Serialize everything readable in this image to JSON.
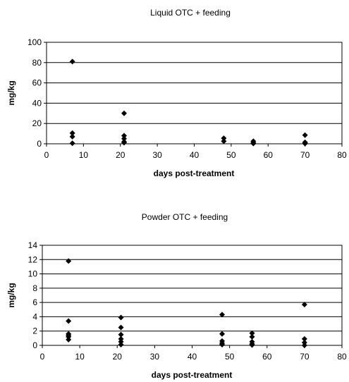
{
  "chart_data": [
    {
      "type": "scatter",
      "title": "Liquid OTC + feeding",
      "xlabel": "days post-treatment",
      "ylabel": "mg/kg",
      "xlim": [
        0,
        80
      ],
      "ylim": [
        0,
        100
      ],
      "xticks": [
        0,
        10,
        20,
        30,
        40,
        50,
        60,
        70,
        80
      ],
      "yticks": [
        0,
        20,
        40,
        60,
        80,
        100
      ],
      "grid": "horizontal",
      "marker": "diamond",
      "marker_color": "#000000",
      "points": [
        {
          "x": 7,
          "y": 81
        },
        {
          "x": 7,
          "y": 10.5
        },
        {
          "x": 7,
          "y": 7
        },
        {
          "x": 7,
          "y": 0.5
        },
        {
          "x": 21,
          "y": 30
        },
        {
          "x": 21,
          "y": 8
        },
        {
          "x": 21,
          "y": 5
        },
        {
          "x": 21,
          "y": 2
        },
        {
          "x": 21,
          "y": 1
        },
        {
          "x": 48,
          "y": 5.5
        },
        {
          "x": 48,
          "y": 2.5
        },
        {
          "x": 56,
          "y": 2.5
        },
        {
          "x": 56,
          "y": 1
        },
        {
          "x": 56,
          "y": 0.3
        },
        {
          "x": 70,
          "y": 8.5
        },
        {
          "x": 70,
          "y": 1.5
        },
        {
          "x": 70,
          "y": 0.8
        },
        {
          "x": 70,
          "y": 0.2
        }
      ]
    },
    {
      "type": "scatter",
      "title": "Powder OTC + feeding",
      "xlabel": "days post-treatment",
      "ylabel": "mg/kg",
      "xlim": [
        0,
        80
      ],
      "ylim": [
        0,
        14
      ],
      "xticks": [
        0,
        10,
        20,
        30,
        40,
        50,
        60,
        70,
        80
      ],
      "yticks": [
        0,
        2,
        4,
        6,
        8,
        10,
        12,
        14
      ],
      "grid": "horizontal",
      "marker": "diamond",
      "marker_color": "#000000",
      "points": [
        {
          "x": 7,
          "y": 11.8
        },
        {
          "x": 7,
          "y": 3.4
        },
        {
          "x": 7,
          "y": 1.6
        },
        {
          "x": 7,
          "y": 1.4
        },
        {
          "x": 7,
          "y": 1.2
        },
        {
          "x": 7,
          "y": 0.8
        },
        {
          "x": 21,
          "y": 3.9
        },
        {
          "x": 21,
          "y": 2.5
        },
        {
          "x": 21,
          "y": 1.5
        },
        {
          "x": 21,
          "y": 0.9
        },
        {
          "x": 21,
          "y": 0.5
        },
        {
          "x": 21,
          "y": 0.1
        },
        {
          "x": 48,
          "y": 4.3
        },
        {
          "x": 48,
          "y": 1.6
        },
        {
          "x": 48,
          "y": 0.6
        },
        {
          "x": 48,
          "y": 0.3
        },
        {
          "x": 48,
          "y": 0.1
        },
        {
          "x": 56,
          "y": 1.7
        },
        {
          "x": 56,
          "y": 1.2
        },
        {
          "x": 56,
          "y": 0.5
        },
        {
          "x": 56,
          "y": 0.2
        },
        {
          "x": 56,
          "y": 0.05
        },
        {
          "x": 70,
          "y": 5.7
        },
        {
          "x": 70,
          "y": 0.9
        },
        {
          "x": 70,
          "y": 0.4
        },
        {
          "x": 70,
          "y": 0
        }
      ]
    }
  ]
}
